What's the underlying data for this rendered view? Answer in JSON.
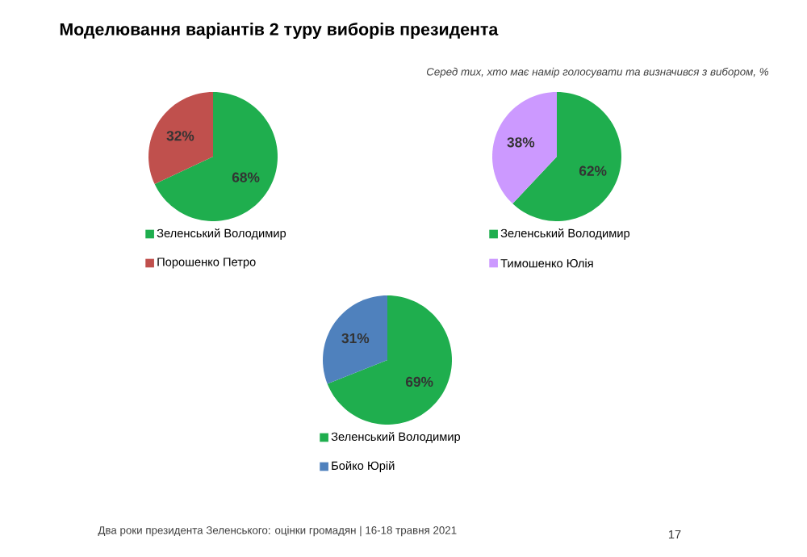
{
  "chart_data": [
    {
      "type": "pie",
      "title": "Моделювання варіантів 2 туру виборів президента",
      "categories": [
        "Зеленський Володимир",
        "Порошенко Петро"
      ],
      "values": [
        68,
        32
      ],
      "value_labels": [
        "68%",
        "32%"
      ],
      "colors": [
        "#1fae4e",
        "#c0504d"
      ],
      "legend": "bottom"
    },
    {
      "type": "pie",
      "subtitle": "Серед тих, хто має намір голосувати  та визначився з вибором, %",
      "categories": [
        "Зеленський Володимир",
        "Тимошенко Юлія"
      ],
      "values": [
        62,
        38
      ],
      "value_labels": [
        "62%",
        "38%"
      ],
      "colors": [
        "#1fae4e",
        "#cc99ff"
      ],
      "legend": "bottom"
    },
    {
      "type": "pie",
      "categories": [
        "Зеленський Володимир",
        "Бойко Юрій"
      ],
      "values": [
        69,
        31
      ],
      "value_labels": [
        "69%",
        "31%"
      ],
      "colors": [
        "#1fae4e",
        "#4f81bd"
      ],
      "legend": "bottom",
      "annotations": [
        "Два роки президента Зеленського: оцінки громадян  |  16-18 травня 2021",
        "17"
      ]
    }
  ]
}
